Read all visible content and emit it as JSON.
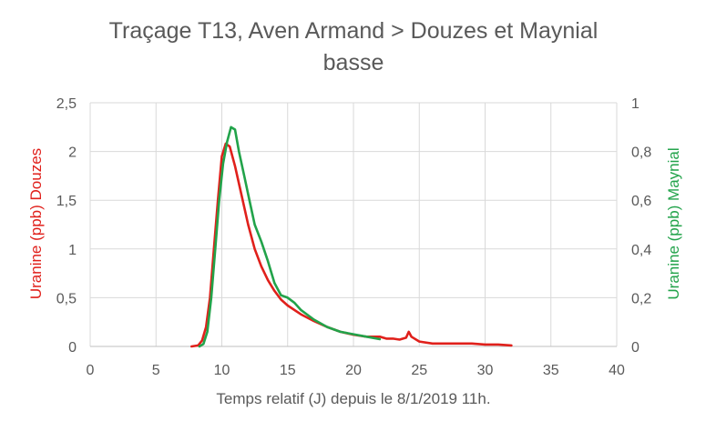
{
  "chart_data": {
    "type": "line",
    "title_lines": [
      "Traçage T13, Aven Armand > Douzes et Maynial",
      "basse"
    ],
    "xlabel": "Temps relatif (J) depuis le 8/1/2019 11h.",
    "ylabel_left": "Uranine (ppb) Douzes",
    "ylabel_right": "Uranine (ppb) Maynial",
    "xlim": [
      0,
      40
    ],
    "ylim_left": [
      0,
      2.5
    ],
    "ylim_right": [
      0,
      1
    ],
    "x_ticks": [
      "0",
      "5",
      "10",
      "15",
      "20",
      "25",
      "30",
      "35",
      "40"
    ],
    "y_left_ticks": [
      "0",
      "0,5",
      "1",
      "1,5",
      "2",
      "2,5"
    ],
    "y_right_ticks": [
      "0",
      "0,2",
      "0,4",
      "0,6",
      "0,8",
      "1"
    ],
    "grid": true,
    "legend": "none",
    "series": [
      {
        "axis": "left",
        "color": "#e0201b",
        "points": [
          [
            7.7,
            0
          ],
          [
            8.2,
            0.01
          ],
          [
            8.5,
            0.06
          ],
          [
            8.8,
            0.2
          ],
          [
            9.1,
            0.5
          ],
          [
            9.4,
            1.0
          ],
          [
            9.7,
            1.5
          ],
          [
            10.0,
            1.95
          ],
          [
            10.3,
            2.08
          ],
          [
            10.6,
            2.05
          ],
          [
            11.0,
            1.85
          ],
          [
            11.5,
            1.55
          ],
          [
            12.0,
            1.25
          ],
          [
            12.5,
            1.0
          ],
          [
            13.0,
            0.82
          ],
          [
            13.5,
            0.68
          ],
          [
            14.0,
            0.57
          ],
          [
            14.5,
            0.48
          ],
          [
            15.0,
            0.42
          ],
          [
            16.0,
            0.33
          ],
          [
            17.0,
            0.26
          ],
          [
            18.0,
            0.2
          ],
          [
            19.0,
            0.15
          ],
          [
            20.0,
            0.12
          ],
          [
            21.0,
            0.1
          ],
          [
            22.0,
            0.1
          ],
          [
            22.5,
            0.08
          ],
          [
            23.0,
            0.08
          ],
          [
            23.5,
            0.07
          ],
          [
            24.0,
            0.09
          ],
          [
            24.2,
            0.15
          ],
          [
            24.4,
            0.1
          ],
          [
            25.0,
            0.05
          ],
          [
            26.0,
            0.03
          ],
          [
            27.0,
            0.03
          ],
          [
            28.0,
            0.03
          ],
          [
            29.0,
            0.03
          ],
          [
            30.0,
            0.02
          ],
          [
            31.0,
            0.02
          ],
          [
            32.0,
            0.01
          ]
        ]
      },
      {
        "axis": "right",
        "color": "#22a34a",
        "points": [
          [
            8.3,
            0
          ],
          [
            8.6,
            0.01
          ],
          [
            8.9,
            0.06
          ],
          [
            9.2,
            0.2
          ],
          [
            9.5,
            0.4
          ],
          [
            9.8,
            0.6
          ],
          [
            10.1,
            0.75
          ],
          [
            10.4,
            0.84
          ],
          [
            10.7,
            0.9
          ],
          [
            11.0,
            0.89
          ],
          [
            11.3,
            0.8
          ],
          [
            11.7,
            0.7
          ],
          [
            12.1,
            0.6
          ],
          [
            12.5,
            0.5
          ],
          [
            13.0,
            0.43
          ],
          [
            13.5,
            0.35
          ],
          [
            14.0,
            0.26
          ],
          [
            14.5,
            0.21
          ],
          [
            15.0,
            0.2
          ],
          [
            15.5,
            0.18
          ],
          [
            16.0,
            0.15
          ],
          [
            17.0,
            0.11
          ],
          [
            18.0,
            0.08
          ],
          [
            19.0,
            0.06
          ],
          [
            20.0,
            0.05
          ],
          [
            21.0,
            0.04
          ],
          [
            22.0,
            0.03
          ]
        ]
      }
    ]
  }
}
